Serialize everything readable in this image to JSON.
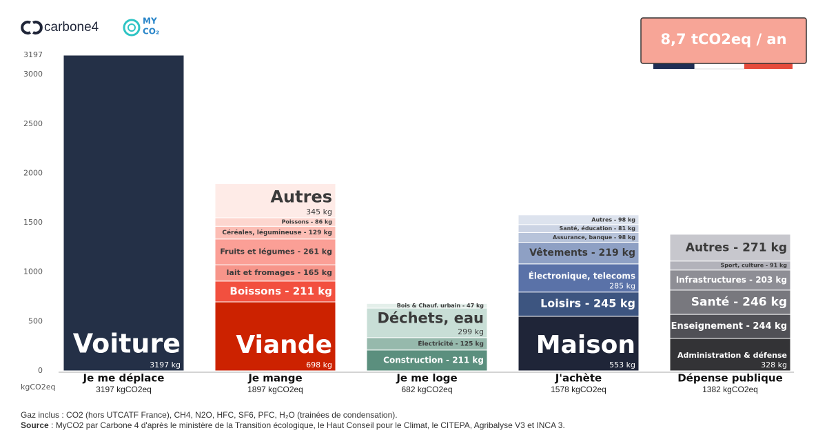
{
  "header": {
    "brand": "carbone4",
    "partner_top": "MY",
    "partner_bottom": "CO₂",
    "badge": "8,7 tCO2eq / an"
  },
  "chart_data": {
    "type": "stacked-bar",
    "y_label": "kgCO2eq",
    "ylim": [
      0,
      3197
    ],
    "yticks": [
      0,
      500,
      1000,
      1500,
      2000,
      2500,
      3000,
      3197
    ],
    "stacks": [
      {
        "category": "Je me déplace",
        "total_label": "3197 kgCO2eq",
        "segments": [
          {
            "label": "Voiture",
            "value_label": "3197 kg",
            "value": 3197,
            "color": "#243047"
          }
        ]
      },
      {
        "category": "Je mange",
        "total_label": "1897 kgCO2eq",
        "segments": [
          {
            "label": "Viande",
            "value_label": "698 kg",
            "value": 698,
            "color": "#cc2200"
          },
          {
            "label": "Boissons - 211 kg",
            "value": 211,
            "color": "#f2503f"
          },
          {
            "label": "lait et fromages - 165 kg",
            "value": 165,
            "color": "#f7958a"
          },
          {
            "label": "Fruits et légumes - 261 kg",
            "value": 261,
            "color": "#fb9f96"
          },
          {
            "label": "Céréales, légumineuse - 129 kg",
            "value": 129,
            "color": "#fcbdb4"
          },
          {
            "label": "Poissons - 86 kg",
            "value": 86,
            "color": "#fdd6cf"
          },
          {
            "label": "Autres",
            "value_label": "345 kg",
            "value": 345,
            "color": "#feebe7"
          }
        ]
      },
      {
        "category": "Je me loge",
        "total_label": "682 kgCO2eq",
        "segments": [
          {
            "label": "Construction - 211 kg",
            "value": 211,
            "color": "#5b8f7e"
          },
          {
            "label": "Électricité - 125 kg",
            "value": 125,
            "color": "#96b9ac"
          },
          {
            "label": "Déchets, eau",
            "value_label": "299 kg",
            "value": 299,
            "color": "#c8ded6"
          },
          {
            "label": "Bois & Chauf. urbain - 47 kg",
            "value": 47,
            "color": "#e4efea"
          }
        ]
      },
      {
        "category": "J'achète",
        "total_label": "1578 kgCO2eq",
        "segments": [
          {
            "label": "Maison",
            "value_label": "553 kg",
            "value": 553,
            "color": "#1f2538"
          },
          {
            "label": "Loisirs - 245 kg",
            "value": 245,
            "color": "#3d5580"
          },
          {
            "label": "Électronique, telecoms",
            "value_label": "285 kg",
            "value": 285,
            "color": "#5a72a8"
          },
          {
            "label": "Vêtements - 219 kg",
            "value": 219,
            "color": "#8ea0c4"
          },
          {
            "label": "Assurance, banque - 98 kg",
            "value": 98,
            "color": "#b7c3da"
          },
          {
            "label": "Santé, éducation - 81 kg",
            "value": 81,
            "color": "#ccd4e4"
          },
          {
            "label": "Autres - 98 kg",
            "value": 98,
            "color": "#dde3ee"
          }
        ]
      },
      {
        "category": "Dépense publique",
        "total_label": "1382 kgCO2eq",
        "segments": [
          {
            "label": "Administration & défense",
            "value_label": "328 kg",
            "value": 328,
            "color": "#333336"
          },
          {
            "label": "Enseignement - 244 kg",
            "value": 244,
            "color": "#505056"
          },
          {
            "label": "Santé - 246 kg",
            "value": 246,
            "color": "#78787e"
          },
          {
            "label": "Infrastructures - 203 kg",
            "value": 203,
            "color": "#8e8e95"
          },
          {
            "label": "Sport, culture - 91 kg",
            "value": 91,
            "color": "#b2b2ba"
          },
          {
            "label": "Autres - 271 kg",
            "value": 271,
            "color": "#c7c7cd"
          }
        ]
      }
    ]
  },
  "footer": {
    "gases": "Gaz inclus : CO2 (hors UTCATF France), CH4, N2O, HFC, SF6, PFC, H₂O (trainées de condensation).",
    "source_label": "Source",
    "source_text": " : MyCO2 par Carbone 4 d'après le ministère de la Transition écologique, le Haut Conseil pour le Climat, le CITEPA, Agribalyse V3 et INCA 3."
  }
}
